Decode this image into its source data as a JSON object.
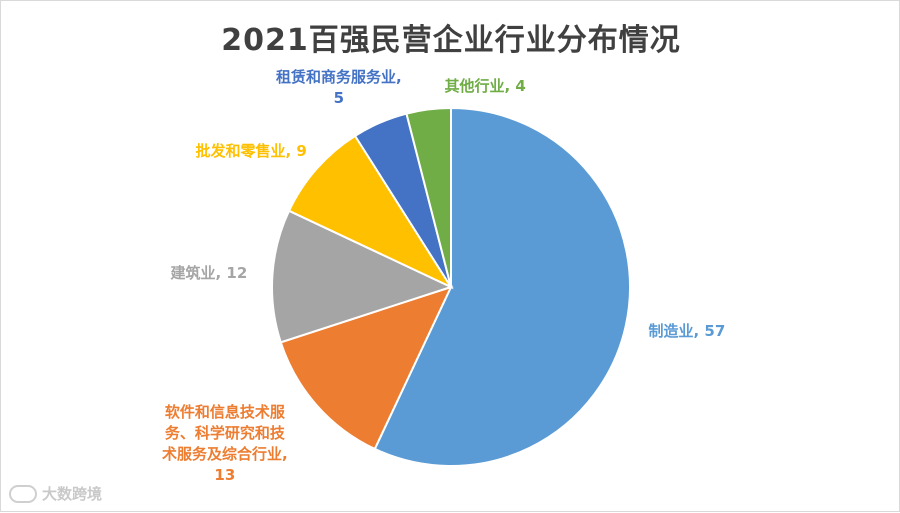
{
  "chart_data": {
    "type": "pie",
    "title": "2021百强民营企业行业分布情况",
    "slices": [
      {
        "name": "制造业",
        "value": 57,
        "color": "#5B9BD5",
        "label_lines": [
          "制造业, 57"
        ]
      },
      {
        "name": "软件和信息技术服务、科学研究和技术服务及综合行业",
        "value": 13,
        "color": "#ED7D31",
        "label_lines": [
          "软件和信息技术服",
          "务、科学研究和技",
          "术服务及综合行业,",
          "13"
        ]
      },
      {
        "name": "建筑业",
        "value": 12,
        "color": "#A5A5A5",
        "label_lines": [
          "建筑业, 12"
        ]
      },
      {
        "name": "批发和零售业",
        "value": 9,
        "color": "#FFC000",
        "label_lines": [
          "批发和零售业, 9"
        ]
      },
      {
        "name": "租赁和商务服务业",
        "value": 5,
        "color": "#4472C4",
        "label_lines": [
          "租赁和商务服务业,",
          "5"
        ]
      },
      {
        "name": "其他行业",
        "value": 4,
        "color": "#70AD47",
        "label_lines": [
          "其他行业, 4"
        ]
      }
    ]
  },
  "watermark": {
    "text": "大数跨境"
  }
}
